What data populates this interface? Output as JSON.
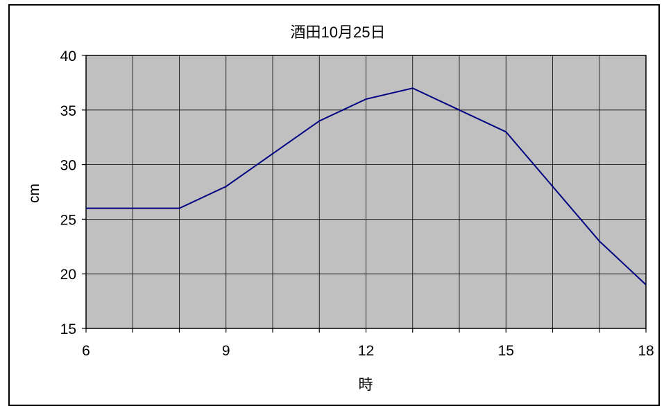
{
  "chart_data": {
    "type": "line",
    "title": "酒田10月25日",
    "xlabel": "時",
    "ylabel": "cm",
    "xlim": [
      6,
      18
    ],
    "ylim": [
      15,
      40
    ],
    "x_ticks": [
      6,
      9,
      12,
      15,
      18
    ],
    "y_ticks": [
      15,
      20,
      25,
      30,
      35,
      40
    ],
    "grid": true,
    "legend": "none",
    "colors": {
      "line": "#000080",
      "plot_bg": "#c0c0c0",
      "grid": "#000000"
    },
    "series": [
      {
        "x": [
          6,
          7,
          8,
          9,
          10,
          11,
          12,
          13,
          14,
          15,
          16,
          17,
          18
        ],
        "values": [
          26,
          26,
          26,
          28,
          31,
          34,
          36,
          37,
          35,
          33,
          28,
          23,
          19
        ]
      }
    ]
  }
}
